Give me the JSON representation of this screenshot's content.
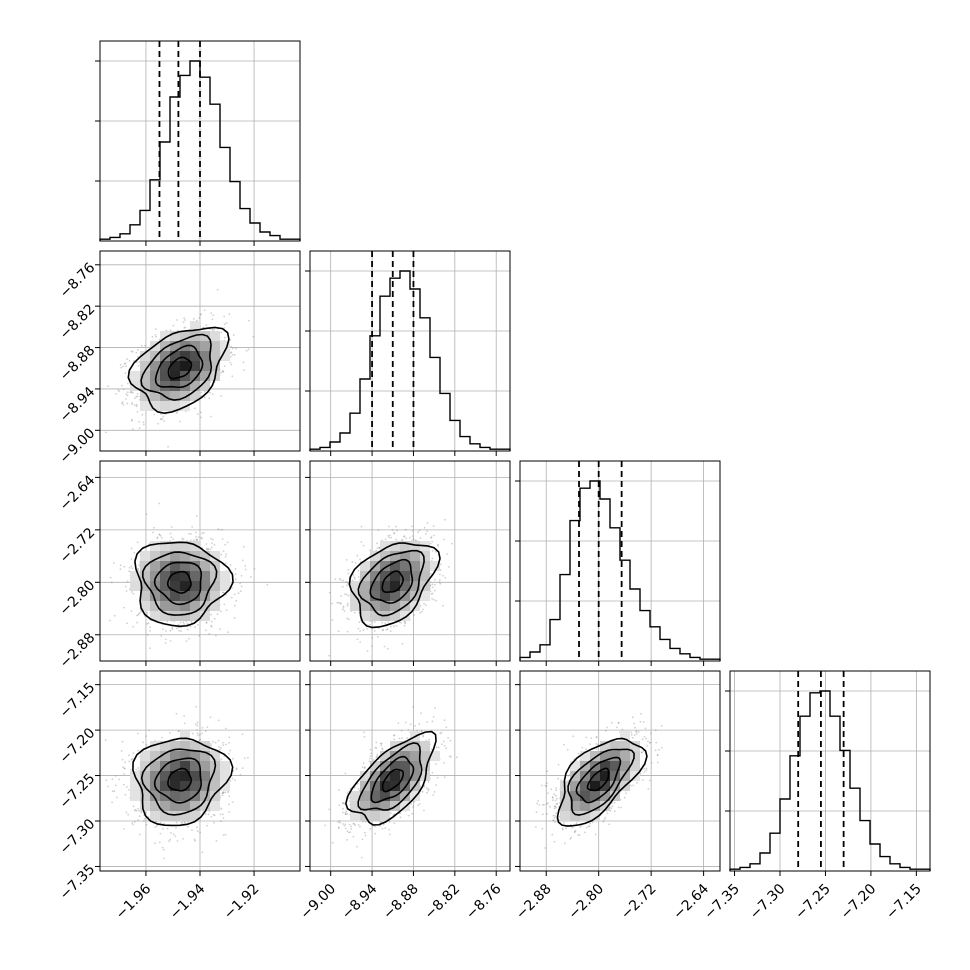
{
  "chart_data": {
    "type": "corner",
    "grid": true,
    "parameters": [
      {
        "range": [
          -1.977,
          -1.903
        ],
        "center": -1.9475,
        "sigma": 0.0085,
        "quantiles": [
          -1.955,
          -1.948,
          -1.94
        ],
        "ticks": [
          "−1.96",
          "−1.94",
          "−1.92"
        ],
        "tick_values": [
          -1.96,
          -1.94,
          -1.92
        ]
      },
      {
        "range": [
          -9.03,
          -8.74
        ],
        "center": -8.91,
        "sigma": 0.03,
        "quantiles": [
          -8.94,
          -8.91,
          -8.88
        ],
        "ticks": [
          "−9.00",
          "−8.94",
          "−8.88",
          "−8.82",
          "−8.76"
        ],
        "tick_values": [
          -9.0,
          -8.94,
          -8.88,
          -8.82,
          -8.76
        ]
      },
      {
        "range": [
          -2.92,
          -2.615
        ],
        "center": -2.8,
        "sigma": 0.032,
        "quantiles": [
          -2.83,
          -2.8,
          -2.765
        ],
        "ticks": [
          "−2.88",
          "−2.80",
          "−2.72",
          "−2.64"
        ],
        "tick_values": [
          -2.88,
          -2.8,
          -2.72,
          -2.64
        ]
      },
      {
        "range": [
          -7.355,
          -7.135
        ],
        "center": -7.255,
        "sigma": 0.024,
        "quantiles": [
          -7.28,
          -7.255,
          -7.23
        ],
        "ticks": [
          "−7.35",
          "−7.30",
          "−7.25",
          "−7.20",
          "−7.15"
        ],
        "tick_values": [
          -7.35,
          -7.3,
          -7.25,
          -7.2,
          -7.15
        ]
      }
    ],
    "y_ticks": {
      "1": [
        "−8.76",
        "−8.82",
        "−8.88",
        "−8.94",
        "−9.00"
      ],
      "2": [
        "−2.64",
        "−2.72",
        "−2.80",
        "−2.88"
      ],
      "3": [
        "−7.15",
        "−7.20",
        "−7.25",
        "−7.30",
        "−7.35"
      ]
    },
    "correlations": {
      "1-0": 0.35,
      "2-0": 0.0,
      "2-1": 0.35,
      "3-0": 0.1,
      "3-1": 0.6,
      "3-2": 0.6
    },
    "histograms": [
      [
        1,
        2,
        4,
        9,
        17,
        34,
        55,
        80,
        92,
        100,
        91,
        76,
        52,
        33,
        18,
        10,
        5,
        3,
        1,
        1
      ],
      [
        1,
        2,
        5,
        10,
        21,
        40,
        64,
        86,
        96,
        100,
        90,
        74,
        52,
        32,
        17,
        8,
        4,
        2,
        1,
        1
      ],
      [
        2,
        5,
        9,
        23,
        48,
        78,
        96,
        100,
        90,
        74,
        56,
        40,
        28,
        19,
        12,
        7,
        4,
        2,
        1,
        1
      ],
      [
        1,
        2,
        4,
        10,
        21,
        40,
        64,
        86,
        99,
        100,
        86,
        67,
        46,
        28,
        15,
        8,
        4,
        2,
        1,
        1
      ]
    ]
  }
}
